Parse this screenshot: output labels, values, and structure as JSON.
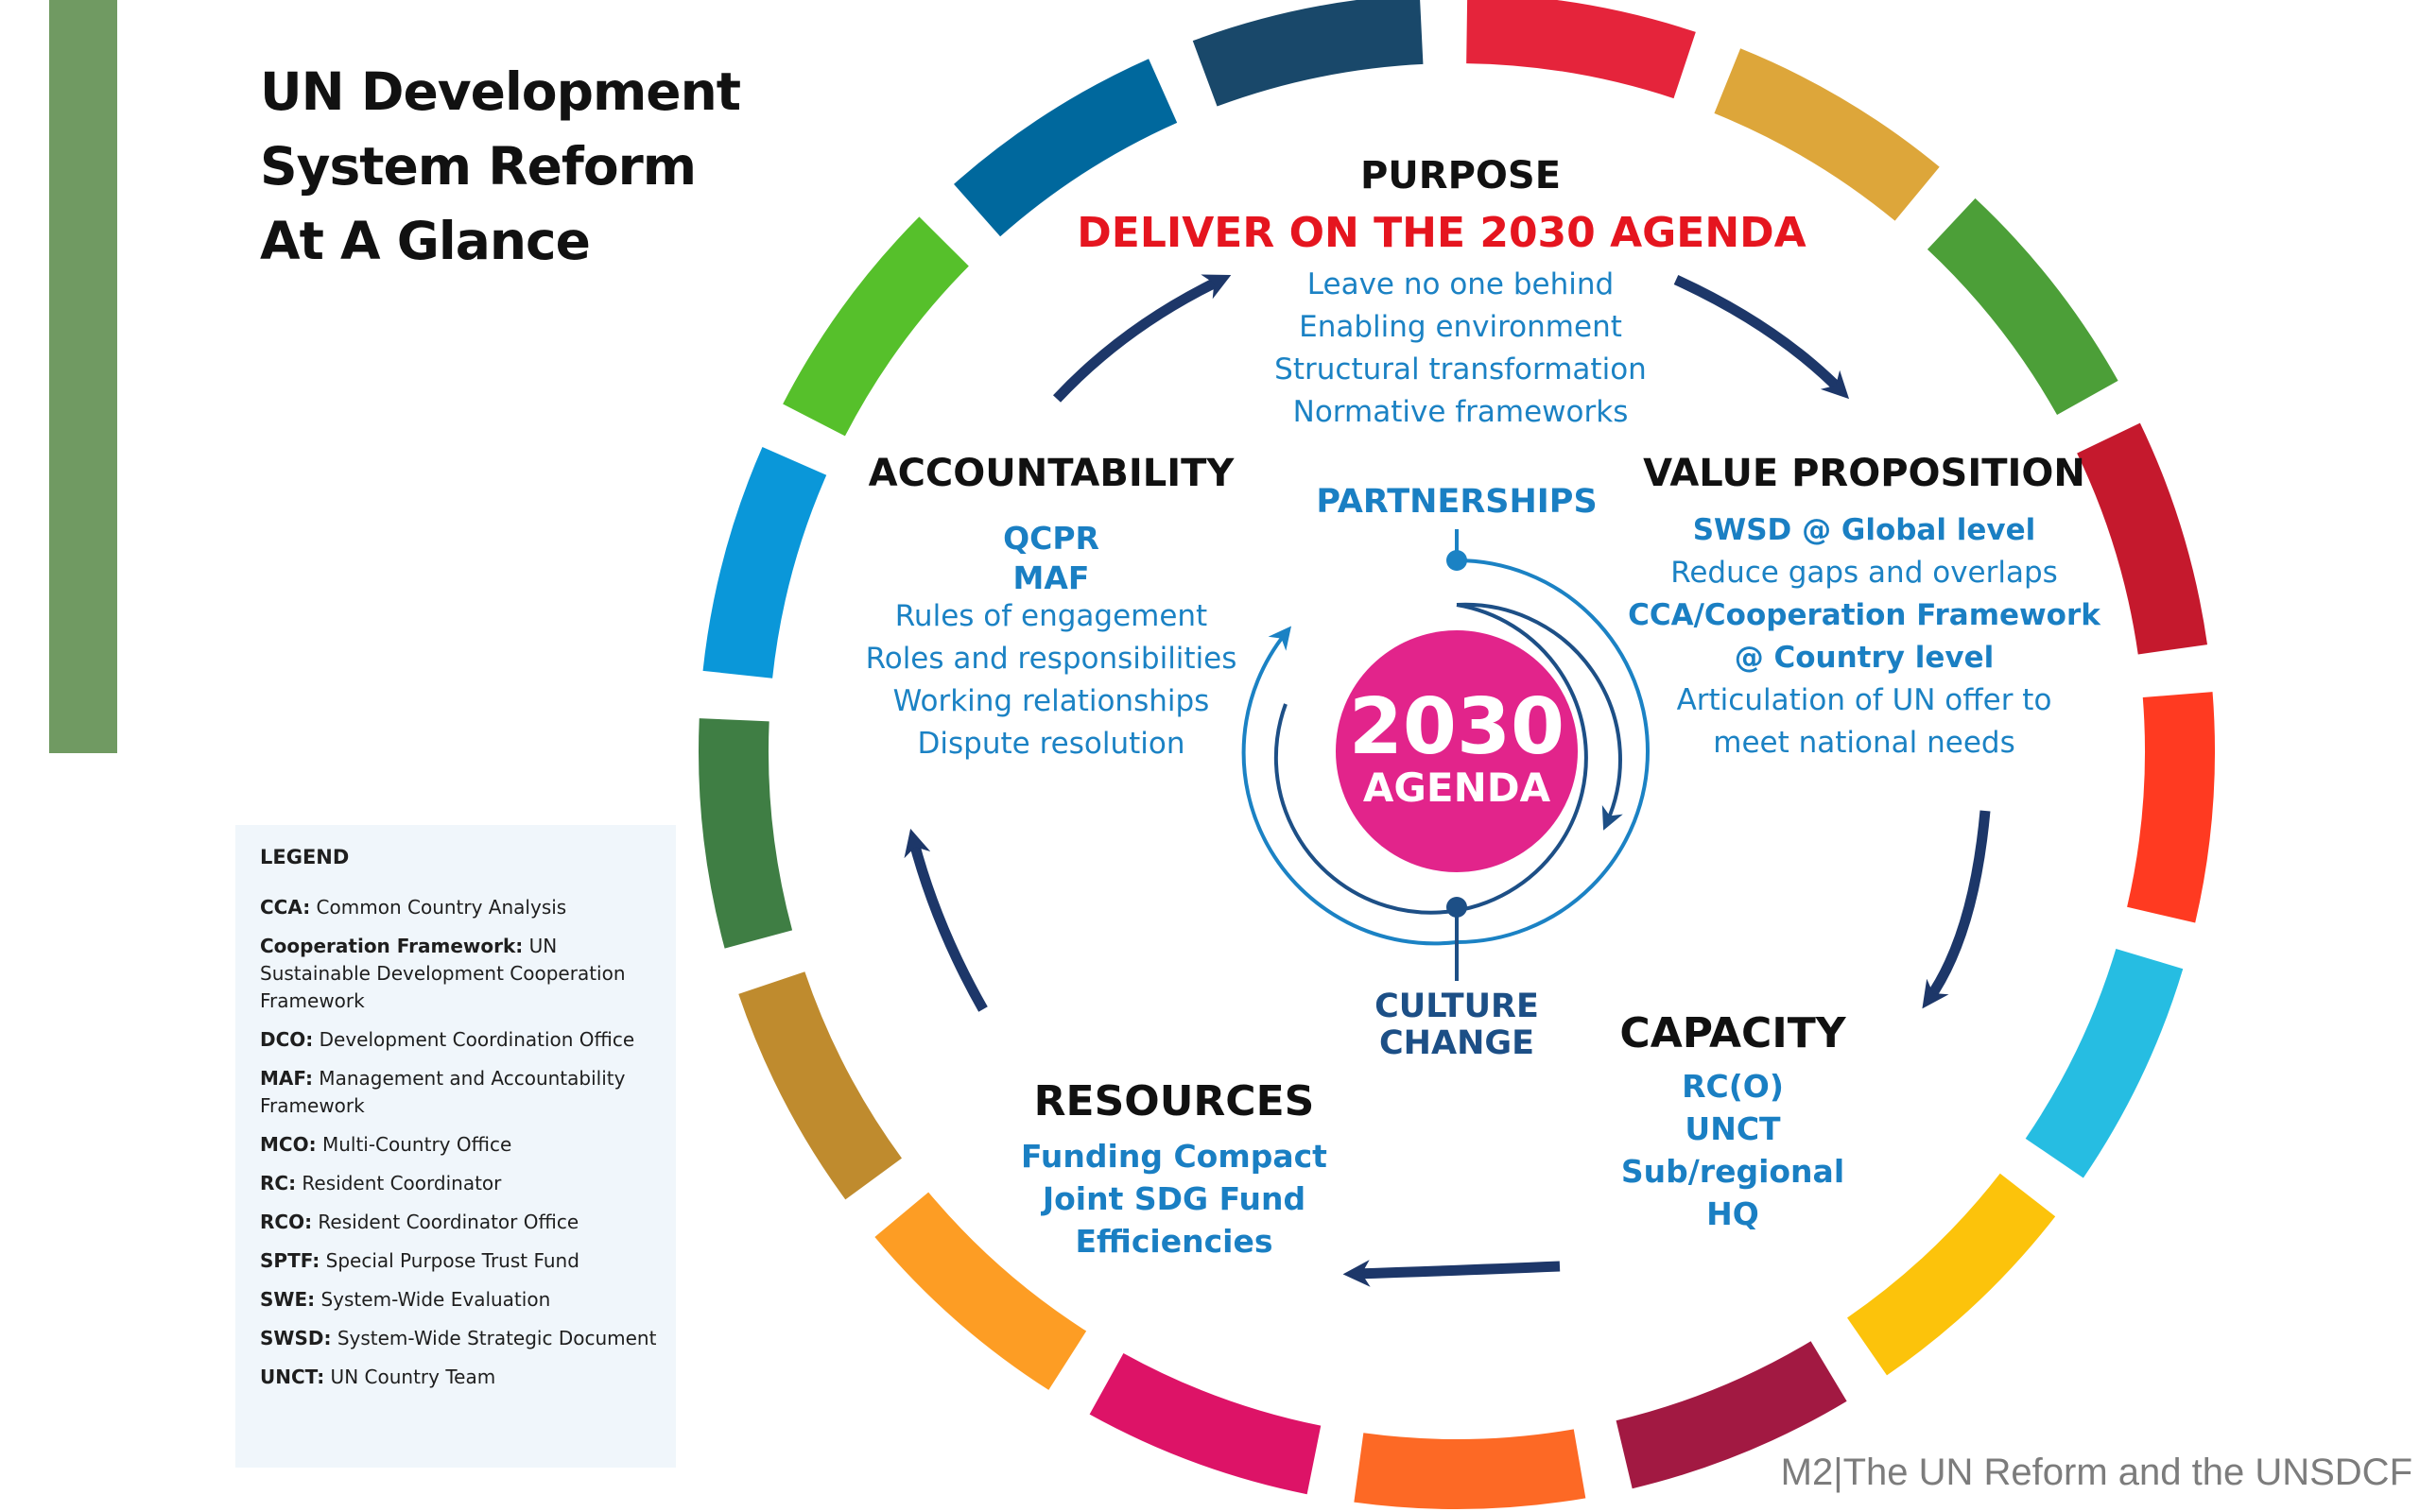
{
  "title_lines": [
    "UN Development",
    "System Reform",
    "At A Glance"
  ],
  "purpose": {
    "heading": "PURPOSE",
    "goal": "DELIVER ON THE 2030 AGENDA",
    "items": [
      "Leave no one behind",
      "Enabling environment",
      "Structural transformation",
      "Normative frameworks"
    ]
  },
  "accountability": {
    "heading": "ACCOUNTABILITY",
    "items_bold": [
      "QCPR",
      "MAF"
    ],
    "items": [
      "Rules of engagement",
      "Roles and responsibilities",
      "Working relationships",
      "Dispute resolution"
    ]
  },
  "value_proposition": {
    "heading": "VALUE PROPOSITION",
    "lines": [
      {
        "text": "SWSD @ Global level",
        "bold": true
      },
      {
        "text": "Reduce gaps and overlaps",
        "bold": false
      },
      {
        "text": "CCA/Cooperation Framework",
        "bold": true
      },
      {
        "text": "@ Country level",
        "bold": true
      },
      {
        "text": "Articulation of UN offer to",
        "bold": false
      },
      {
        "text": "meet national needs",
        "bold": false
      }
    ]
  },
  "capacity": {
    "heading": "CAPACITY",
    "items": [
      "RC(O)",
      "UNCT",
      "Sub/regional",
      "HQ"
    ]
  },
  "resources": {
    "heading": "RESOURCES",
    "items": [
      "Funding Compact",
      "Joint SDG Fund",
      "Efficiencies"
    ]
  },
  "center": {
    "year": "2030",
    "agenda": "AGENDA",
    "partnerships": "PARTNERSHIPS",
    "culture_lines": [
      "CULTURE",
      "CHANGE"
    ]
  },
  "legend": {
    "heading": "LEGEND",
    "items": [
      {
        "term": "CCA:",
        "def": " Common Country Analysis"
      },
      {
        "term": "Cooperation Framework:",
        "def": " UN Sustainable Development Cooperation Framework"
      },
      {
        "term": "DCO:",
        "def": " Development Coordination Office"
      },
      {
        "term": "MAF:",
        "def": " Management and Accountability Framework"
      },
      {
        "term": "MCO:",
        "def": " Multi-Country Office"
      },
      {
        "term": "RC:",
        "def": " Resident Coordinator"
      },
      {
        "term": "RCO:",
        "def": " Resident Coordinator Office"
      },
      {
        "term": "SPTF:",
        "def": " Special Purpose Trust Fund"
      },
      {
        "term": "SWE:",
        "def": " System-Wide Evaluation"
      },
      {
        "term": "SWSD:",
        "def": " System-Wide Strategic Document"
      },
      {
        "term": "UNCT:",
        "def": " UN Country Team"
      }
    ]
  },
  "footer": "M2|The UN Reform and the UNSDCF",
  "colors": {
    "sidebar_bar": "#709a62",
    "goal_red": "#e5151f",
    "text_blue": "#1b82c4",
    "arrow_navy": "#1d3769",
    "agenda_magenta": "#e2248b",
    "ring_segments": [
      "#e5243b",
      "#dda63a",
      "#4c9f38",
      "#c5192d",
      "#ff3a21",
      "#26bde2",
      "#fcc30b",
      "#a21942",
      "#fd6925",
      "#dd1367",
      "#fd9d24",
      "#bf8b2e",
      "#3f7e44",
      "#0a97d9",
      "#56c02b",
      "#00689d",
      "#19486a"
    ]
  }
}
